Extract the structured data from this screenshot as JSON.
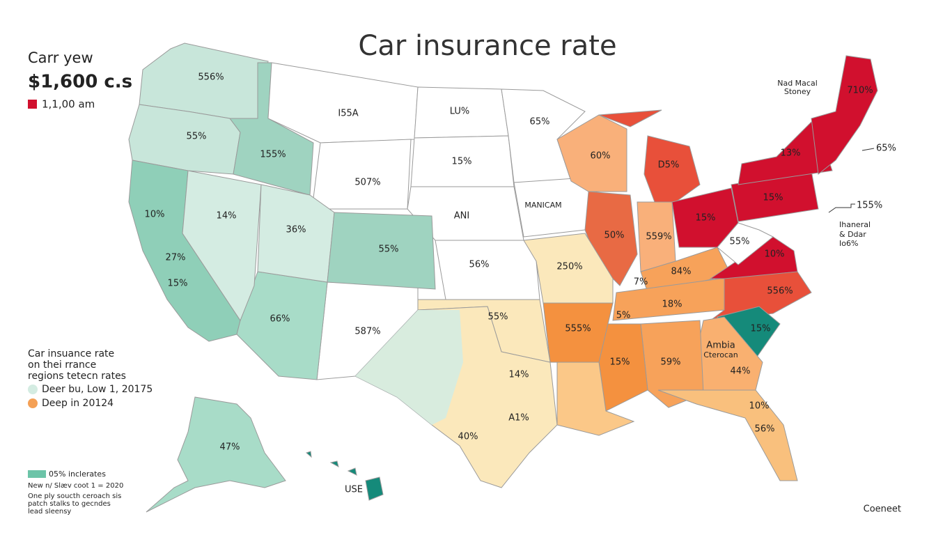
{
  "header": {
    "title": "Car insurance rate",
    "kicker": "Carr yew",
    "headline": "$1,600 c.s",
    "key": "1,1,00 am"
  },
  "top_right": {
    "lines": [
      "Nad Macal",
      "Stoney"
    ],
    "callouts": [
      "65%",
      "155%"
    ],
    "note": [
      "Ihaneral",
      "& Ddar",
      "Io6%"
    ]
  },
  "legend": {
    "title_lines": [
      "Car insuance rate",
      "on thei rrance",
      "regions tetecn rates"
    ],
    "items": [
      {
        "label": "Deer bu, Low 1, 20175",
        "color": "#d4ece2"
      },
      {
        "label": "Deep in 20124",
        "color": "#f4a055"
      }
    ]
  },
  "footnote": {
    "key": {
      "label": "05% inclerates",
      "color": "#6cc4a8"
    },
    "lines": [
      "New n/ Slæv coot 1 = 2020",
      "One ply soucth ceroach sis",
      "patch stalks to gecndes",
      "lead sleensy"
    ]
  },
  "credit": "Coeneet",
  "regions": [
    {
      "color": "#c8e6da",
      "labels": [
        "556%"
      ]
    },
    {
      "color": "#c8e6da",
      "labels": [
        "55%"
      ]
    },
    {
      "color": "#8fcfb8",
      "labels": [
        "10%",
        "27%",
        "15%"
      ]
    },
    {
      "color": "#9fd3c0",
      "labels": [
        "155%"
      ]
    },
    {
      "color": "#ffffff",
      "labels": [
        "I55A"
      ]
    },
    {
      "color": "#ffffff",
      "labels": [
        "507%"
      ]
    },
    {
      "color": "#ffffff",
      "labels": [
        "LU%"
      ]
    },
    {
      "color": "#ffffff",
      "labels": [
        "15%"
      ]
    },
    {
      "color": "#ffffff",
      "labels": [
        "ANI"
      ]
    },
    {
      "color": "#ffffff",
      "labels": [
        "65%"
      ]
    },
    {
      "color": "#ffffff",
      "labels": [
        "MANICAM"
      ]
    },
    {
      "color": "#f9b07a",
      "labels": [
        "60%"
      ]
    },
    {
      "color": "#e8503a",
      "labels": [
        "D5%"
      ]
    },
    {
      "color": "#e86a44",
      "labels": [
        "50%"
      ]
    },
    {
      "color": "#f9b07a",
      "labels": [
        "559%"
      ]
    },
    {
      "color": "#d1102e",
      "labels": [
        "15%"
      ]
    },
    {
      "color": "#f7a25a",
      "labels": [
        "84%",
        "7%"
      ]
    },
    {
      "color": "#f7a25a",
      "labels": [
        "18%",
        "5%"
      ]
    },
    {
      "color": "#d1102e",
      "labels": [
        "15%"
      ]
    },
    {
      "color": "#d1102e",
      "labels": [
        "13%"
      ]
    },
    {
      "color": "#d1102e",
      "labels": [
        "710%"
      ]
    },
    {
      "color": "#d1102e",
      "labels": [
        "10%"
      ]
    },
    {
      "color": "#ffffff",
      "labels": [
        "55%"
      ]
    },
    {
      "color": "#e8503a",
      "labels": [
        "556%"
      ]
    },
    {
      "color": "#158a7a",
      "labels": [
        "15%"
      ]
    },
    {
      "color": "#f9b070",
      "labels": [
        "44%",
        "Ambia",
        "Cterocan"
      ]
    },
    {
      "color": "#f7a25a",
      "labels": [
        "59%"
      ]
    },
    {
      "color": "#f4913f",
      "labels": [
        "15%"
      ]
    },
    {
      "color": "#f9c07d",
      "labels": [
        "10%",
        "56%"
      ]
    },
    {
      "color": "#fbc888",
      "labels": []
    },
    {
      "color": "#f4913f",
      "labels": [
        "555%"
      ]
    },
    {
      "color": "#fbe8bb",
      "labels": [
        "250%"
      ]
    },
    {
      "color": "#ffffff",
      "labels": [
        "56%"
      ]
    },
    {
      "color": "#fbe8bb",
      "labels": [
        "55%"
      ]
    },
    {
      "color": "#fbe8bb",
      "labels": [
        "14%",
        "A1%",
        "40%"
      ]
    },
    {
      "color": "#ffffff",
      "labels": [
        "587%"
      ]
    },
    {
      "color": "#a8dcc8",
      "labels": [
        "66%"
      ]
    },
    {
      "color": "#d4ece2",
      "labels": [
        "14%"
      ]
    },
    {
      "color": "#d4ece2",
      "labels": [
        "36%"
      ]
    },
    {
      "color": "#9fd3c0",
      "labels": [
        "55%"
      ]
    },
    {
      "color": "#a8dcc8",
      "labels": [
        "47%"
      ]
    },
    {
      "color": "#158a7a",
      "labels": [
        "USE"
      ]
    }
  ]
}
